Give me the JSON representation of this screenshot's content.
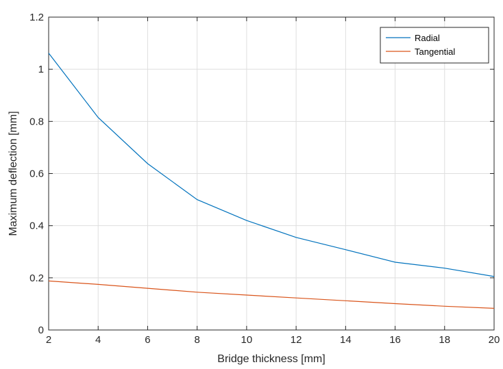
{
  "chart_data": {
    "type": "line",
    "x": [
      2,
      4,
      6,
      8,
      10,
      12,
      14,
      16,
      18,
      20
    ],
    "series": [
      {
        "name": "Radial",
        "color": "#0072BD",
        "values": [
          1.062,
          0.815,
          0.638,
          0.5,
          0.42,
          0.355,
          0.308,
          0.26,
          0.237,
          0.205
        ]
      },
      {
        "name": "Tangential",
        "color": "#D95319",
        "values": [
          0.188,
          0.175,
          0.16,
          0.145,
          0.134,
          0.123,
          0.112,
          0.101,
          0.091,
          0.083
        ]
      }
    ],
    "xlabel": "Bridge thickness [mm]",
    "ylabel": "Maximum deflection [mm]",
    "xlim": [
      2,
      20
    ],
    "ylim": [
      0,
      1.2
    ],
    "xticks": [
      2,
      4,
      6,
      8,
      10,
      12,
      14,
      16,
      18,
      20
    ],
    "yticks": [
      0,
      0.2,
      0.4,
      0.6,
      0.8,
      1,
      1.2
    ],
    "grid": true,
    "legend_position": "top-right"
  }
}
